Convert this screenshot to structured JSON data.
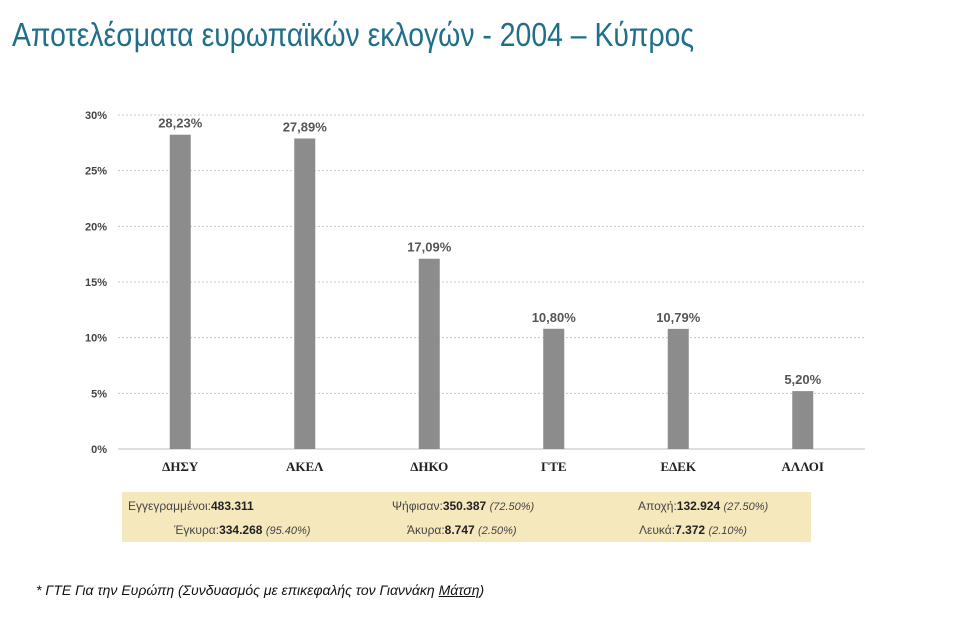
{
  "title": "Αποτελέσματα ευρωπαϊκών εκλογών - 2004 – Κύπρος",
  "chart_data": {
    "type": "bar",
    "categories": [
      "ΔΗΣΥ",
      "ΑΚΕΛ",
      "ΔΗΚΟ",
      "ΓΤΕ",
      "ΕΔΕΚ",
      "ΑΛΛΟΙ"
    ],
    "values": [
      28.23,
      27.89,
      17.09,
      10.8,
      10.79,
      5.2
    ],
    "data_labels": [
      "28,23%",
      "27,89%",
      "17,09%",
      "10,80%",
      "10,79%",
      "5,20%"
    ],
    "yticks": [
      "0%",
      "5%",
      "10%",
      "15%",
      "20%",
      "25%",
      "30%"
    ],
    "ylim": [
      0,
      30
    ],
    "grid": true,
    "bar_color": "#8c8c8c"
  },
  "stats": {
    "registered_label": "Εγγεγραμμένοι:",
    "registered_value": "483.311",
    "voted_label": "Ψήφισαν:",
    "voted_value": "350.387",
    "voted_pct": "(72.50%)",
    "abstention_label": "Αποχή:",
    "abstention_value": "132.924",
    "abstention_pct": "(27.50%)",
    "valid_label": "Έγκυρα:",
    "valid_value": "334.268",
    "valid_pct": "(95.40%)",
    "invalid_label": "Άκυρα:",
    "invalid_value": "8.747",
    "invalid_pct": "(2.50%)",
    "blank_label": "Λευκά:",
    "blank_value": "7.372",
    "blank_pct": "(2.10%)"
  },
  "footnote": {
    "prefix": "* ΓΤΕ Για την Ευρώπη (Συνδυασμός με επικεφαλής τον Γιαννάκη ",
    "name": "Μάτση",
    "suffix": ")"
  }
}
